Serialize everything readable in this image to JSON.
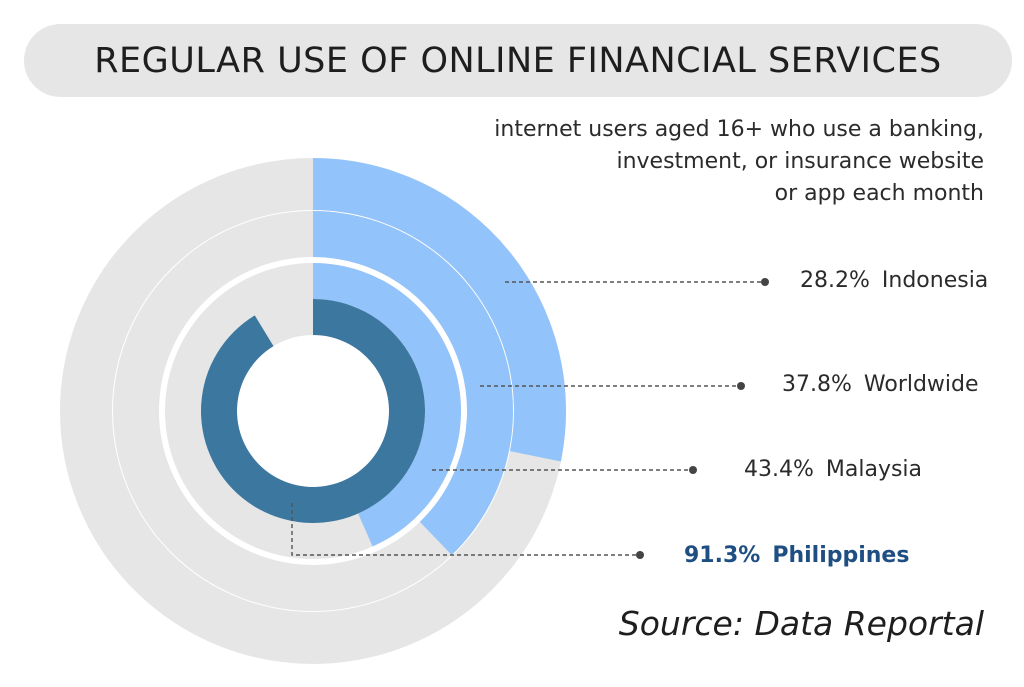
{
  "chart_data": {
    "type": "radial_bar",
    "title": "REGULAR USE OF ONLINE FINANCIAL SERVICES",
    "subtitle": [
      "internet users aged 16+ who use a banking,",
      "investment, or insurance website",
      "or app each month"
    ],
    "unit": "%",
    "rings": [
      {
        "label": "Indonesia",
        "value": 28.2,
        "value_text": "28.2%",
        "color": "#93c3fb",
        "highlight": false
      },
      {
        "label": "Worldwide",
        "value": 37.8,
        "value_text": "37.8%",
        "color": "#93c3fb",
        "highlight": false
      },
      {
        "label": "Malaysia",
        "value": 43.4,
        "value_text": "43.4%",
        "color": "#93c3fb",
        "highlight": false
      },
      {
        "label": "Philippines",
        "value": 91.3,
        "value_text": "91.3%",
        "color": "#3c779f",
        "highlight": true
      }
    ],
    "track_color": "#e6e6e6",
    "highlight_text_color": "#1f4f82",
    "source": "Source: Data Reportal"
  }
}
